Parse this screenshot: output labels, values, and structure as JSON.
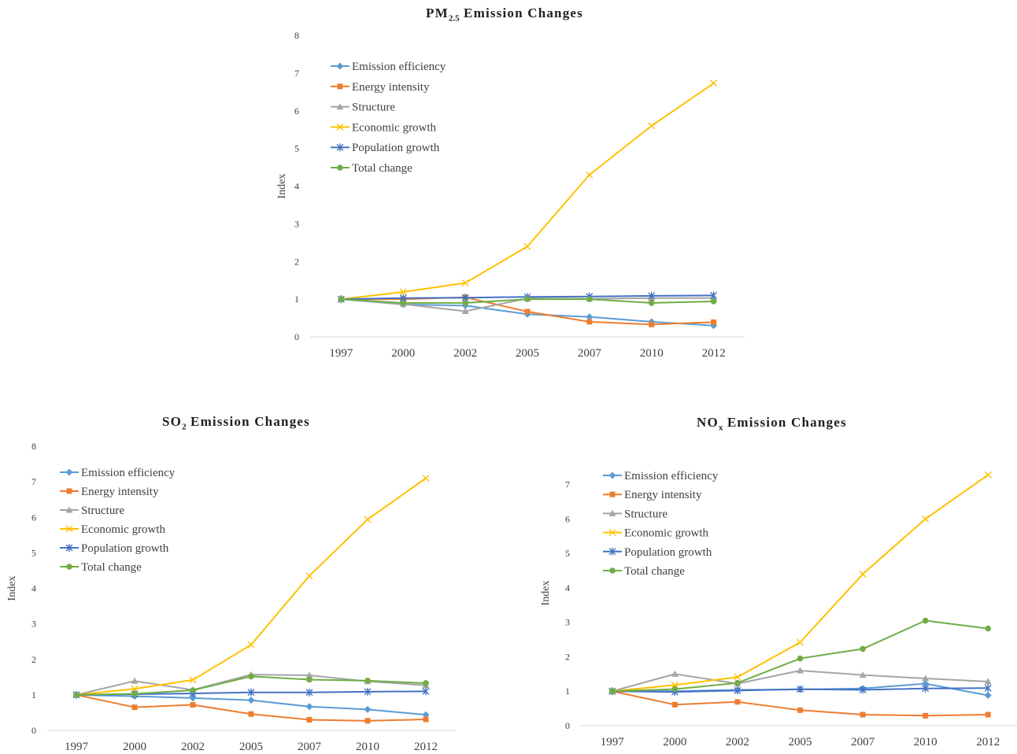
{
  "colors": {
    "emission_efficiency": "#5b9bd5",
    "energy_intensity": "#ed7d31",
    "structure": "#a5a5a5",
    "economic_growth": "#ffc000",
    "population_growth": "#4472c4",
    "total_change": "#70ad47",
    "axis": "#d9d9d9"
  },
  "chart_data": [
    {
      "id": "pm25",
      "type": "line",
      "title_main": "PM",
      "title_sub": "2.5",
      "title_rest": " Emission  Changes",
      "ylabel": "Index",
      "xlabel": "",
      "categories": [
        "1997",
        "2000",
        "2002",
        "2005",
        "2007",
        "2010",
        "2012"
      ],
      "yticks": [
        "0",
        "1",
        "2",
        "3",
        "4",
        "5",
        "6",
        "7",
        "8"
      ],
      "ylim": [
        0,
        8
      ],
      "grid": false,
      "legend_position": "top-left",
      "series": [
        {
          "name": "Emission efficiency",
          "key": "emission_efficiency",
          "marker": "diamond",
          "values": [
            1,
            0.86,
            0.83,
            0.6,
            0.53,
            0.4,
            0.3
          ]
        },
        {
          "name": "Energy intensity",
          "key": "energy_intensity",
          "marker": "square",
          "values": [
            1,
            1.0,
            1.05,
            0.67,
            0.4,
            0.33,
            0.39
          ]
        },
        {
          "name": "Structure",
          "key": "structure",
          "marker": "triangle",
          "values": [
            1,
            0.87,
            0.68,
            1.02,
            1.01,
            1.03,
            1.03
          ]
        },
        {
          "name": "Economic growth",
          "key": "economic_growth",
          "marker": "x",
          "values": [
            1,
            1.19,
            1.43,
            2.4,
            4.3,
            5.6,
            6.73
          ]
        },
        {
          "name": "Population growth",
          "key": "population_growth",
          "marker": "star",
          "values": [
            1,
            1.03,
            1.04,
            1.06,
            1.07,
            1.09,
            1.1
          ]
        },
        {
          "name": "Total change",
          "key": "total_change",
          "marker": "circle",
          "values": [
            1,
            0.9,
            0.9,
            1.0,
            1.0,
            0.9,
            0.94
          ]
        }
      ]
    },
    {
      "id": "so2",
      "type": "line",
      "title_main": "SO",
      "title_sub": "2",
      "title_rest": " Emission  Changes",
      "ylabel": "Index",
      "xlabel": "",
      "categories": [
        "1997",
        "2000",
        "2002",
        "2005",
        "2007",
        "2010",
        "2012"
      ],
      "yticks": [
        "0",
        "1",
        "2",
        "3",
        "4",
        "5",
        "6",
        "7",
        "8"
      ],
      "ylim": [
        0,
        8
      ],
      "grid": false,
      "legend_position": "top-left",
      "series": [
        {
          "name": "Emission efficiency",
          "key": "emission_efficiency",
          "marker": "diamond",
          "values": [
            1,
            0.96,
            0.91,
            0.85,
            0.67,
            0.59,
            0.44
          ]
        },
        {
          "name": "Energy intensity",
          "key": "energy_intensity",
          "marker": "square",
          "values": [
            1,
            0.65,
            0.72,
            0.46,
            0.3,
            0.27,
            0.31
          ]
        },
        {
          "name": "Structure",
          "key": "structure",
          "marker": "triangle",
          "values": [
            1,
            1.39,
            1.14,
            1.57,
            1.55,
            1.38,
            1.27
          ]
        },
        {
          "name": "Economic growth",
          "key": "economic_growth",
          "marker": "x",
          "values": [
            1,
            1.17,
            1.42,
            2.41,
            4.35,
            5.94,
            7.1
          ]
        },
        {
          "name": "Population growth",
          "key": "population_growth",
          "marker": "star",
          "values": [
            1,
            1.02,
            1.04,
            1.07,
            1.07,
            1.09,
            1.1
          ]
        },
        {
          "name": "Total change",
          "key": "total_change",
          "marker": "circle",
          "values": [
            1,
            1.03,
            1.13,
            1.52,
            1.43,
            1.4,
            1.33
          ]
        }
      ]
    },
    {
      "id": "nox",
      "type": "line",
      "title_main": "NO",
      "title_sub": "x",
      "title_rest": " Emission  Changes",
      "ylabel": "Index",
      "xlabel": "",
      "categories": [
        "1997",
        "2000",
        "2002",
        "2005",
        "2007",
        "2010",
        "2012"
      ],
      "yticks": [
        "0",
        "1",
        "2",
        "3",
        "4",
        "5",
        "6",
        "7"
      ],
      "ylim": [
        0,
        7.7
      ],
      "grid": false,
      "legend_position": "top-left",
      "series": [
        {
          "name": "Emission efficiency",
          "key": "emission_efficiency",
          "marker": "diamond",
          "values": [
            1,
            1.0,
            1.04,
            1.05,
            1.08,
            1.22,
            0.88
          ]
        },
        {
          "name": "Energy intensity",
          "key": "energy_intensity",
          "marker": "square",
          "values": [
            1,
            0.61,
            0.69,
            0.45,
            0.32,
            0.29,
            0.32
          ]
        },
        {
          "name": "Structure",
          "key": "structure",
          "marker": "triangle",
          "values": [
            1,
            1.5,
            1.22,
            1.6,
            1.47,
            1.37,
            1.28
          ]
        },
        {
          "name": "Economic growth",
          "key": "economic_growth",
          "marker": "x",
          "values": [
            1,
            1.18,
            1.41,
            2.42,
            4.4,
            6.0,
            7.28
          ]
        },
        {
          "name": "Population growth",
          "key": "population_growth",
          "marker": "star",
          "values": [
            1,
            0.98,
            1.02,
            1.06,
            1.04,
            1.08,
            1.09
          ]
        },
        {
          "name": "Total change",
          "key": "total_change",
          "marker": "circle",
          "values": [
            1,
            1.06,
            1.24,
            1.95,
            2.23,
            3.05,
            2.82
          ]
        }
      ]
    }
  ]
}
